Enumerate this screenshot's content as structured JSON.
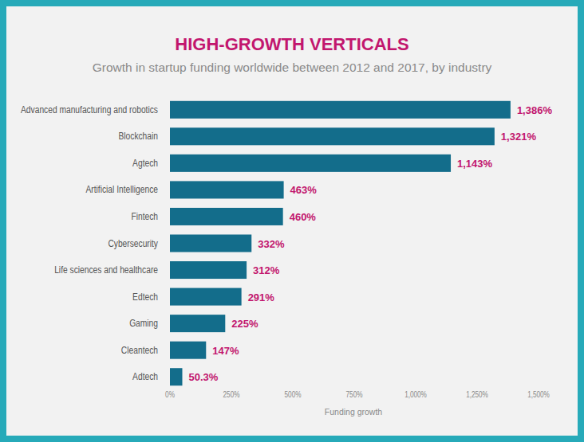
{
  "chart_data": {
    "type": "bar",
    "orientation": "horizontal",
    "title": "HIGH-GROWTH VERTICALS",
    "subtitle": "Growth in startup funding worldwide between 2012 and 2017, by industry",
    "x_label": "Funding growth",
    "categories": [
      "Advanced manufacturing and robotics",
      "Blockchain",
      "Agtech",
      "Artificial Intelligence",
      "Fintech",
      "Cybersecurity",
      "Life sciences and healthcare",
      "Edtech",
      "Gaming",
      "Cleantech",
      "Adtech"
    ],
    "values": [
      1386,
      1321,
      1143,
      463,
      460,
      332,
      312,
      291,
      225,
      147,
      50.3
    ],
    "value_labels": [
      "1,386%",
      "1,321%",
      "1,143%",
      "463%",
      "460%",
      "332%",
      "312%",
      "291%",
      "225%",
      "147%",
      "50.3%"
    ],
    "data_labels": true,
    "color": "#136d8b",
    "xlim": [
      0,
      1500
    ],
    "xticks": [
      {
        "value": 0,
        "label": "0%"
      },
      {
        "value": 250,
        "label": "250%"
      },
      {
        "value": 500,
        "label": "500%"
      },
      {
        "value": 750,
        "label": "750%"
      },
      {
        "value": 1000,
        "label": "1,000%"
      },
      {
        "value": 1250,
        "label": "1,250%"
      },
      {
        "value": 1500,
        "label": "1,500%"
      }
    ],
    "grid": false
  }
}
